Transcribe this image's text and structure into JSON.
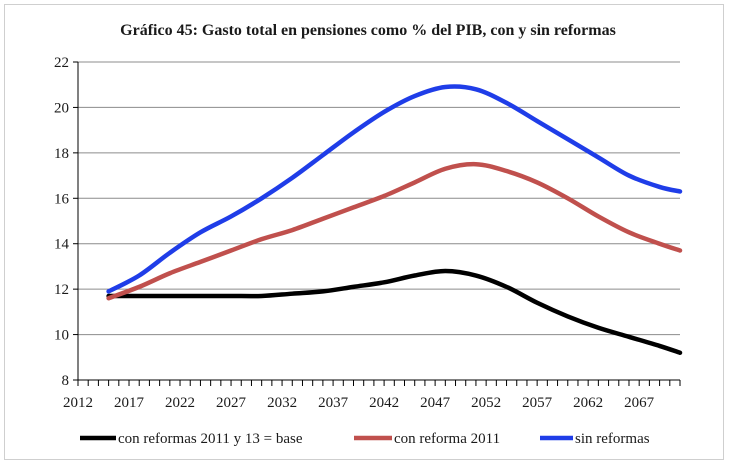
{
  "chart_data": {
    "type": "line",
    "title": "Gráfico 45: Gasto total en pensiones como % del PIB, con y sin reformas",
    "xlabel": "",
    "ylabel": "",
    "xlim": [
      2012,
      2071
    ],
    "ylim": [
      8,
      22
    ],
    "x_ticks": [
      "2012",
      "2017",
      "2022",
      "2027",
      "2032",
      "2037",
      "2042",
      "2047",
      "2052",
      "2057",
      "2062",
      "2067"
    ],
    "y_ticks": [
      "8",
      "10",
      "12",
      "14",
      "16",
      "18",
      "20",
      "22"
    ],
    "grid": "horizontal",
    "legend": "bottom",
    "series": [
      {
        "name": "con reformas 2011 y 13 = base",
        "color": "#000000",
        "x": [
          2015,
          2018,
          2021,
          2024,
          2027,
          2030,
          2033,
          2036,
          2039,
          2042,
          2045,
          2048,
          2051,
          2054,
          2057,
          2060,
          2063,
          2066,
          2069,
          2071
        ],
        "values": [
          11.7,
          11.7,
          11.7,
          11.7,
          11.7,
          11.7,
          11.8,
          11.9,
          12.1,
          12.3,
          12.6,
          12.8,
          12.6,
          12.1,
          11.4,
          10.8,
          10.3,
          9.9,
          9.5,
          9.2
        ]
      },
      {
        "name": "con reforma 2011",
        "color": "#c0504d",
        "x": [
          2015,
          2018,
          2021,
          2024,
          2027,
          2030,
          2033,
          2036,
          2039,
          2042,
          2045,
          2048,
          2051,
          2054,
          2057,
          2060,
          2063,
          2066,
          2069,
          2071
        ],
        "values": [
          11.6,
          12.1,
          12.7,
          13.2,
          13.7,
          14.2,
          14.6,
          15.1,
          15.6,
          16.1,
          16.7,
          17.3,
          17.5,
          17.2,
          16.7,
          16.0,
          15.2,
          14.5,
          14.0,
          13.7
        ]
      },
      {
        "name": "sin reformas",
        "color": "#1f3de8",
        "x": [
          2015,
          2018,
          2021,
          2024,
          2027,
          2030,
          2033,
          2036,
          2039,
          2042,
          2045,
          2048,
          2051,
          2054,
          2057,
          2060,
          2063,
          2066,
          2069,
          2071
        ],
        "values": [
          11.9,
          12.6,
          13.6,
          14.5,
          15.2,
          16.0,
          16.9,
          17.9,
          18.9,
          19.8,
          20.5,
          20.9,
          20.8,
          20.2,
          19.4,
          18.6,
          17.8,
          17.0,
          16.5,
          16.3
        ]
      }
    ]
  }
}
